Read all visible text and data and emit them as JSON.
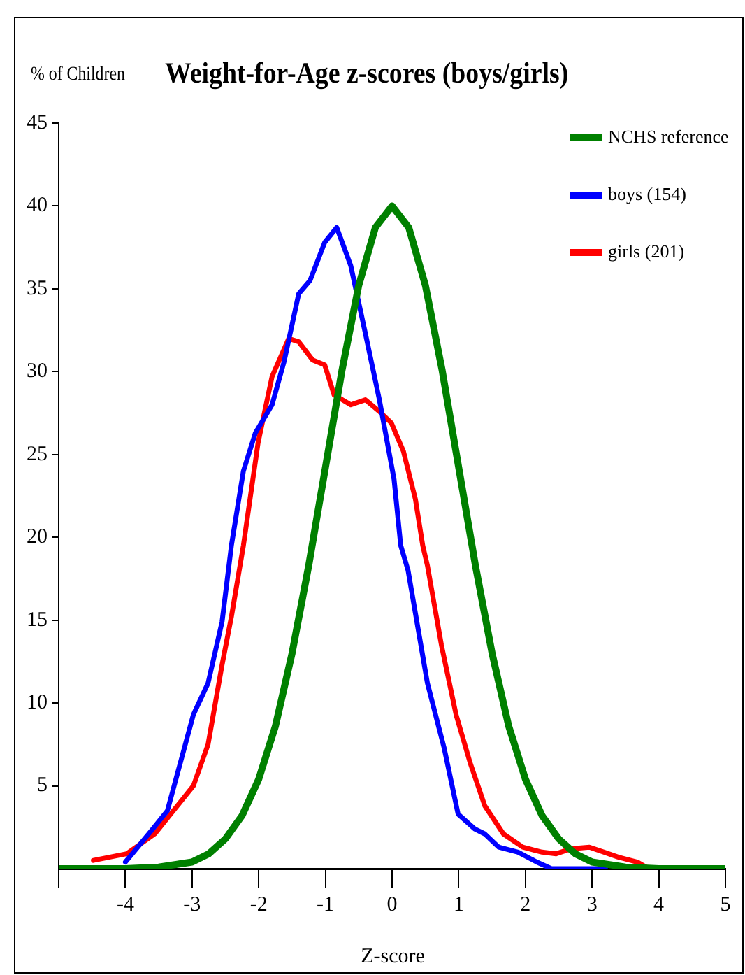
{
  "chart_data": {
    "type": "line",
    "title": "Weight-for-Age z-scores (boys/girls)",
    "xlabel": "Z-score",
    "ylabel": "% of Children",
    "xlim": [
      -5,
      5
    ],
    "ylim": [
      0,
      45
    ],
    "xticks": [
      {
        "value": -5,
        "label": null
      },
      -4,
      -3,
      -2,
      -1,
      0,
      1,
      2,
      3,
      4,
      5
    ],
    "yticks": [
      5,
      10,
      15,
      20,
      25,
      30,
      35,
      40,
      45
    ],
    "grid": false,
    "legend": "top right",
    "series": [
      {
        "name": "NCHS reference",
        "color": "#008000",
        "x": [
          -5,
          -4.5,
          -4,
          -3.5,
          -3,
          -2.75,
          -2.5,
          -2.25,
          -2,
          -1.75,
          -1.5,
          -1.25,
          -1,
          -0.75,
          -0.5,
          -0.25,
          0,
          0.25,
          0.5,
          0.75,
          1,
          1.25,
          1.5,
          1.75,
          2,
          2.25,
          2.5,
          2.75,
          3,
          3.5,
          4,
          4.5,
          5
        ],
        "values": [
          0,
          0,
          0,
          0.1,
          0.4,
          0.9,
          1.8,
          3.2,
          5.4,
          8.6,
          13,
          18.3,
          24.2,
          30.1,
          35.2,
          38.7,
          40,
          38.7,
          35.2,
          30.1,
          24.2,
          18.3,
          13,
          8.6,
          5.4,
          3.2,
          1.8,
          0.9,
          0.4,
          0.1,
          0,
          0,
          0
        ]
      },
      {
        "name": "boys (154)",
        "color": "#0000ff",
        "x": [
          -4,
          -3.59,
          -3.37,
          -2.98,
          -2.76,
          -2.55,
          -2.41,
          -2.23,
          -2.05,
          -1.8,
          -1.62,
          -1.4,
          -1.23,
          -1.01,
          -0.83,
          -0.62,
          -0.4,
          -0.19,
          0.03,
          0.13,
          0.24,
          0.53,
          0.78,
          0.99,
          1.24,
          1.39,
          1.6,
          1.89,
          2.17,
          2.39,
          2.9,
          3.2
        ],
        "values": [
          0.4,
          2.4,
          3.5,
          9.3,
          11.2,
          14.9,
          19.5,
          24,
          26.3,
          28,
          30.6,
          34.7,
          35.5,
          37.8,
          38.7,
          36.4,
          32.3,
          28.3,
          23.5,
          19.5,
          18,
          11.2,
          7.3,
          3.3,
          2.4,
          2.1,
          1.3,
          1,
          0.4,
          0,
          0,
          0
        ]
      },
      {
        "name": "girls (201)",
        "color": "#ff0000",
        "x": [
          -4.48,
          -3.98,
          -3.56,
          -2.98,
          -2.76,
          -2.55,
          -2.41,
          -2.23,
          -2.01,
          -1.8,
          -1.55,
          -1.4,
          -1.19,
          -1.01,
          -0.87,
          -0.62,
          -0.4,
          -0.19,
          -0.01,
          0.17,
          0.35,
          0.46,
          0.53,
          0.74,
          0.96,
          1.17,
          1.39,
          1.67,
          1.96,
          2.25,
          2.46,
          2.68,
          2.96,
          3.18,
          3.39,
          3.68,
          3.85
        ],
        "values": [
          0.5,
          0.9,
          2.1,
          5,
          7.5,
          12.3,
          15.2,
          19.5,
          25.7,
          29.7,
          32,
          31.8,
          30.7,
          30.4,
          28.6,
          28,
          28.3,
          27.6,
          26.9,
          25.2,
          22.3,
          19.5,
          18.3,
          13.5,
          9.3,
          6.4,
          3.8,
          2.1,
          1.3,
          1,
          0.9,
          1.2,
          1.3,
          1,
          0.7,
          0.4,
          0
        ]
      }
    ]
  }
}
